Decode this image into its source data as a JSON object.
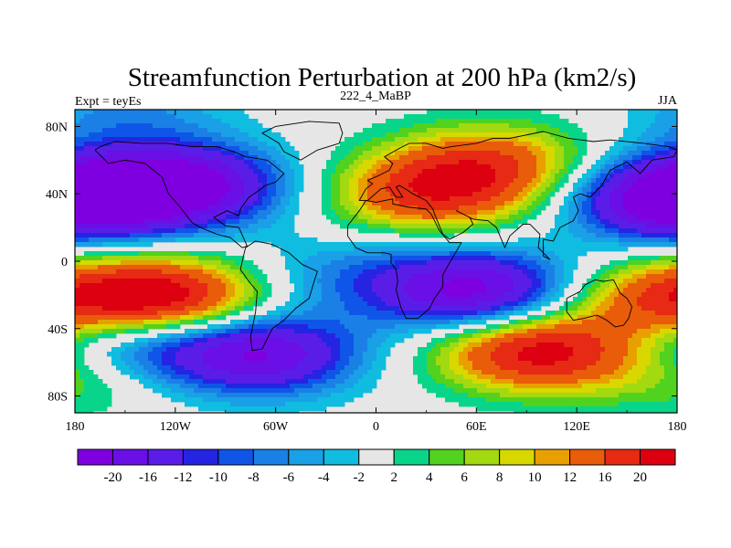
{
  "chart_data": {
    "type": "heatmap",
    "title": "Streamfunction Perturbation at 200 hPa (km2/s)",
    "left_label": "Expt = teyEs",
    "center_label": "222_4_MaBP",
    "right_label": "JJA",
    "x_ticks": [
      "180",
      "120W",
      "60W",
      "0",
      "60E",
      "120E",
      "180"
    ],
    "x_tick_values": [
      -180,
      -120,
      -60,
      0,
      60,
      120,
      180
    ],
    "y_ticks": [
      "80N",
      "40N",
      "0",
      "40S",
      "80S"
    ],
    "y_tick_values": [
      80,
      40,
      0,
      -40,
      -80
    ],
    "xlim": [
      -180,
      180
    ],
    "ylim": [
      -90,
      90
    ],
    "contour_levels": [
      -20,
      -16,
      -12,
      -10,
      -8,
      -6,
      -4,
      -2,
      2,
      4,
      6,
      8,
      10,
      12,
      16,
      20
    ],
    "colorbar_labels": [
      "-20",
      "-16",
      "-12",
      "-10",
      "-8",
      "-6",
      "-4",
      "-2",
      "2",
      "4",
      "6",
      "8",
      "10",
      "12",
      "16",
      "20"
    ],
    "colorbar_colors": [
      "#7e00e0",
      "#6a0fe6",
      "#5a1de8",
      "#2424e2",
      "#0f56e8",
      "#1a80e6",
      "#19a0e6",
      "#10bce0",
      "#e6e6e6",
      "#08d58a",
      "#50d21e",
      "#a2d910",
      "#d8d800",
      "#e8a000",
      "#e85c0a",
      "#e62a14",
      "#dc0010"
    ],
    "field_centers": [
      {
        "lon": -115,
        "lat": 45,
        "value": -22
      },
      {
        "lon": -175,
        "lat": 40,
        "value": -14
      },
      {
        "lon": 30,
        "lat": 40,
        "value": 16
      },
      {
        "lon": 70,
        "lat": 58,
        "value": 14
      },
      {
        "lon": 175,
        "lat": 35,
        "value": -14
      },
      {
        "lon": -125,
        "lat": -22,
        "value": 22
      },
      {
        "lon": 60,
        "lat": -18,
        "value": -22
      },
      {
        "lon": -20,
        "lat": -8,
        "value": -6
      },
      {
        "lon": 170,
        "lat": -22,
        "value": 14
      },
      {
        "lon": -70,
        "lat": -55,
        "value": -20
      },
      {
        "lon": 95,
        "lat": -53,
        "value": 22
      },
      {
        "lon": -175,
        "lat": -65,
        "value": 8
      },
      {
        "lon": -150,
        "lat": -50,
        "value": -12
      },
      {
        "lon": -150,
        "lat": 88,
        "value": -6
      }
    ]
  }
}
